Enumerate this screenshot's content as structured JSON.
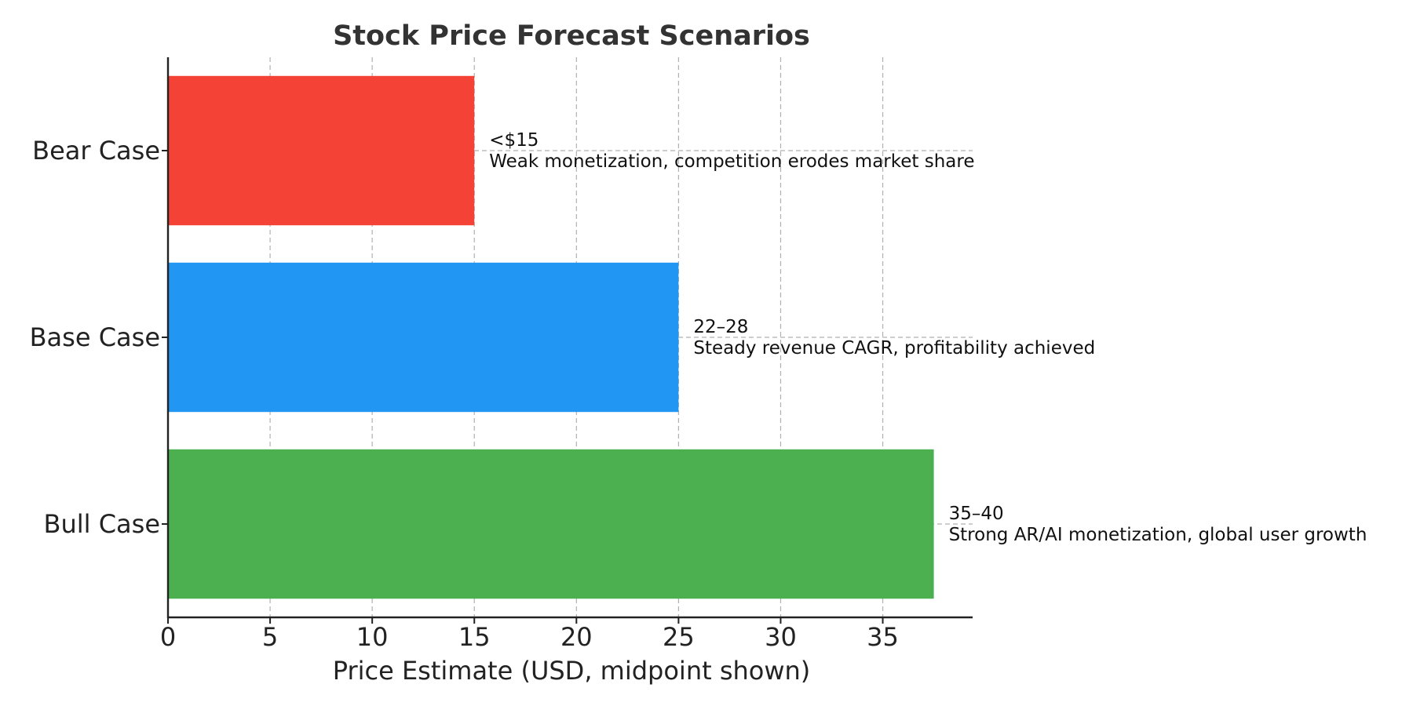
{
  "chart_data": {
    "type": "bar",
    "orientation": "horizontal",
    "title": "Stock Price Forecast Scenarios",
    "xlabel": "Price Estimate (USD, midpoint shown)",
    "ylabel": "",
    "xlim": [
      0,
      39.4
    ],
    "xticks": [
      0,
      5,
      10,
      15,
      20,
      25,
      30,
      35
    ],
    "grid": true,
    "categories": [
      "Bear Case",
      "Base Case",
      "Bull Case"
    ],
    "values": [
      15,
      25,
      37.5
    ],
    "colors": [
      "#F44336",
      "#2196F3",
      "#4CAF50"
    ],
    "annotations": [
      {
        "value_text": "<$15",
        "description": "Weak monetization, competition erodes market share"
      },
      {
        "value_text": "22–28",
        "description": "Steady revenue CAGR, profitability achieved"
      },
      {
        "value_text": "35–40",
        "description": "Strong AR/AI monetization, global user growth"
      }
    ]
  }
}
